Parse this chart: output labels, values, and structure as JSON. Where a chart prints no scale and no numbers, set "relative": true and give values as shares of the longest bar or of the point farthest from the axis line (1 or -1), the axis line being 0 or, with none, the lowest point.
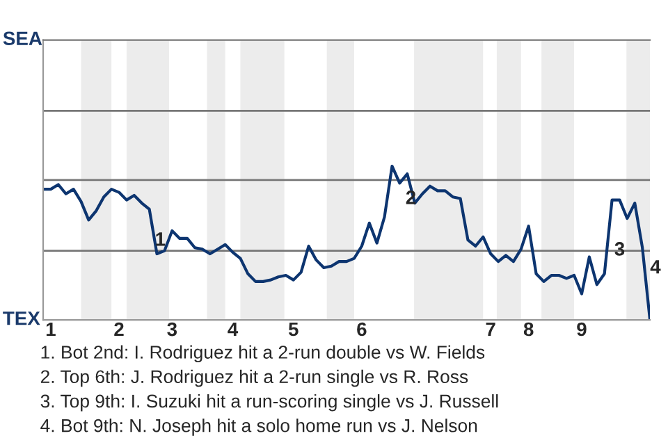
{
  "chart_data": {
    "type": "line",
    "relative": true,
    "categories": [
      null,
      "1",
      null,
      null,
      null,
      null,
      null,
      null,
      null,
      null,
      "2",
      null,
      null,
      null,
      null,
      null,
      null,
      "3",
      null,
      null,
      null,
      null,
      null,
      null,
      null,
      "4",
      null,
      null,
      null,
      null,
      null,
      null,
      null,
      "5",
      null,
      null,
      null,
      null,
      null,
      null,
      null,
      null,
      "6",
      null,
      null,
      null,
      null,
      null,
      null,
      null,
      null,
      null,
      null,
      null,
      null,
      null,
      null,
      null,
      null,
      "7",
      null,
      null,
      null,
      null,
      "8",
      null,
      null,
      null,
      null,
      null,
      null,
      "9",
      null,
      null,
      null,
      null,
      null,
      null,
      null,
      null,
      null
    ],
    "series": [
      {
        "color": "#0d3570",
        "values": [
          0.85,
          0.85,
          0.88,
          0.82,
          0.85,
          0.77,
          0.65,
          0.71,
          0.8,
          0.85,
          0.83,
          0.78,
          0.81,
          0.76,
          0.72,
          0.43,
          0.45,
          0.58,
          0.53,
          0.53,
          0.47,
          0.46,
          0.43,
          0.46,
          0.49,
          0.44,
          0.4,
          0.3,
          0.25,
          0.25,
          0.26,
          0.28,
          0.29,
          0.26,
          0.31,
          0.48,
          0.39,
          0.34,
          0.35,
          0.38,
          0.38,
          0.4,
          0.48,
          0.63,
          0.5,
          0.67,
          1,
          0.89,
          0.95,
          0.76,
          0.82,
          0.87,
          0.84,
          0.84,
          0.8,
          0.79,
          0.52,
          0.48,
          0.54,
          0.43,
          0.38,
          0.42,
          0.38,
          0.46,
          0.61,
          0.3,
          0.25,
          0.29,
          0.29,
          0.27,
          0.29,
          0.17,
          0.41,
          0.23,
          0.3,
          0.78,
          0.78,
          0.66,
          0.76,
          0.47,
          0
        ]
      }
    ],
    "ref_lines": [
      {
        "axis": "y",
        "value": 0.45,
        "color": "#777777"
      },
      {
        "axis": "y",
        "value": 0.91,
        "color": "#777777"
      },
      {
        "axis": "y",
        "value": 1.36,
        "color": "#777777"
      }
    ],
    "annotations": [
      "SEA",
      "TEX",
      "1",
      "2",
      "3",
      "4",
      "1. Bot 2nd: I. Rodriguez hit a 2-run double vs W. Fields",
      "2. Top 6th: J. Rodriguez hit a 2-run single vs R. Ross",
      "3. Top 9th: I. Suzuki hit a run-scoring single vs J. Russell",
      "4. Bot 9th: N. Joseph hit a solo home run vs J. Nelson"
    ]
  }
}
